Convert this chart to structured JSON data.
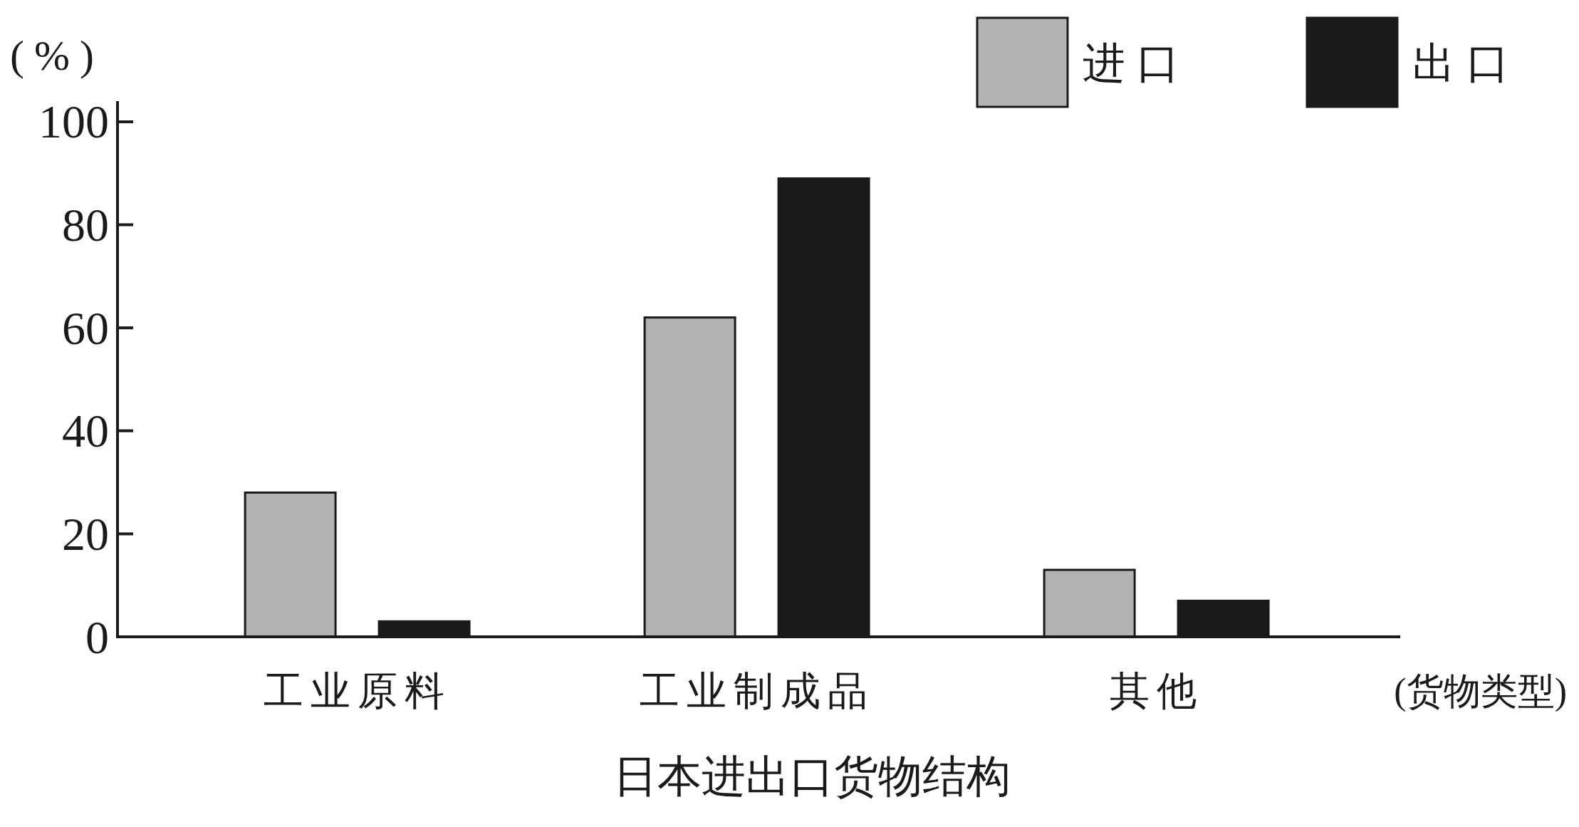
{
  "chart_data": {
    "type": "bar",
    "title": "日本进出口货物结构",
    "xlabel": "(货物类型)",
    "ylabel": "(%)",
    "categories": [
      "工业原料",
      "工业制成品",
      "其他"
    ],
    "series": [
      {
        "name": "进口",
        "color": "#b3b3b3",
        "values": [
          28,
          62,
          13
        ]
      },
      {
        "name": "出口",
        "color": "#1a1a1a",
        "values": [
          3,
          89,
          7
        ]
      }
    ],
    "ylim": [
      0,
      104
    ],
    "yticks": [
      0,
      20,
      40,
      60,
      80,
      100
    ],
    "grid": false,
    "legend": "top right"
  }
}
